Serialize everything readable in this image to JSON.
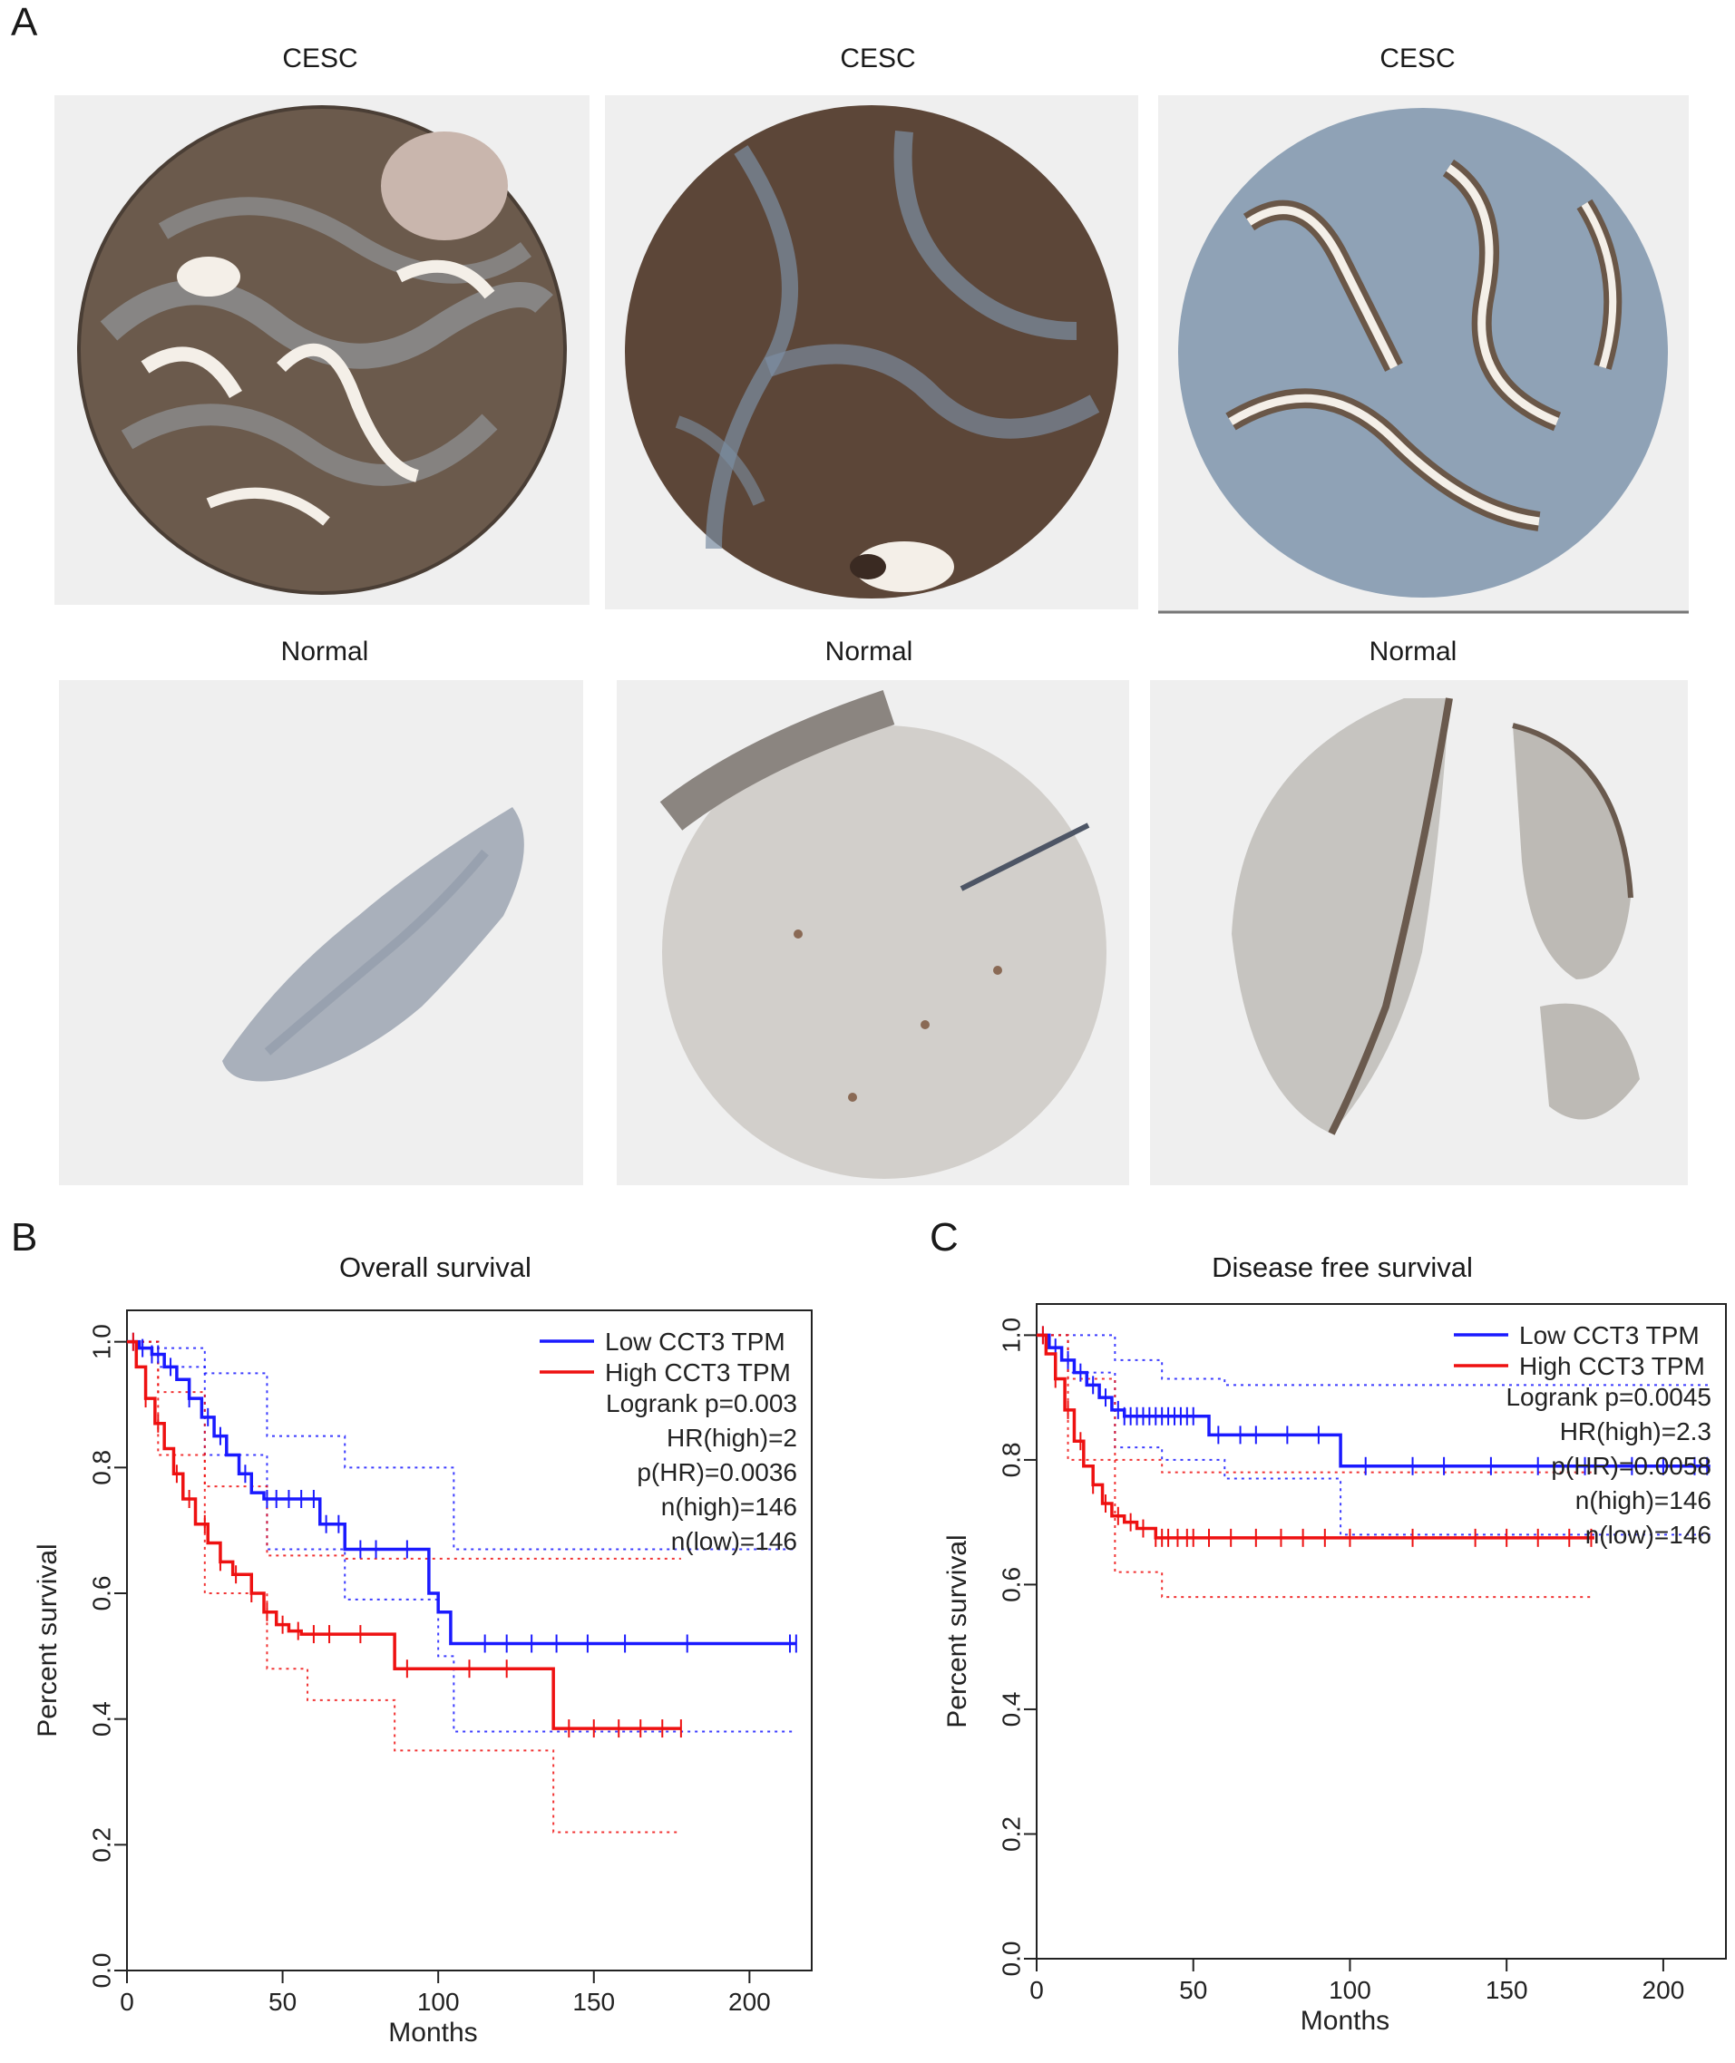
{
  "panels": {
    "a": "A",
    "b": "B",
    "c": "C"
  },
  "tissue": {
    "tumor_label": "CESC",
    "normal_label": "Normal"
  },
  "colors": {
    "low": "#1a1aff",
    "high": "#ee1111",
    "tile_bg": "#efefef",
    "stain_dark": "#5a4a3f",
    "stain_blue": "#8aa0b8",
    "normal_tissue": "#c9c9c6"
  },
  "chart_data": [
    {
      "type": "line",
      "title": "Overall survival",
      "xlabel": "Months",
      "ylabel": "Percent survival",
      "xlim": [
        0,
        220
      ],
      "ylim": [
        0,
        1.05
      ],
      "xticks": [
        0,
        50,
        100,
        150,
        200
      ],
      "yticks": [
        "0.0",
        "0.2",
        "0.4",
        "0.6",
        "0.8",
        "1.0"
      ],
      "legend_placement": "top-right",
      "legend": [
        "Low CCT3 TPM",
        "High CCT3 TPM"
      ],
      "stats": [
        "Logrank p=0.003",
        "HR(high)=2",
        "p(HR)=0.0036",
        "n(high)=146",
        "n(low)=146"
      ],
      "series": [
        {
          "name": "Low CCT3 TPM",
          "color": "#1a1aff",
          "x": [
            0,
            4,
            8,
            12,
            16,
            20,
            24,
            28,
            32,
            36,
            40,
            44,
            55,
            62,
            70,
            85,
            97,
            100,
            104,
            150,
            215
          ],
          "y": [
            1.0,
            0.99,
            0.98,
            0.96,
            0.94,
            0.91,
            0.88,
            0.85,
            0.82,
            0.79,
            0.76,
            0.75,
            0.75,
            0.71,
            0.67,
            0.67,
            0.6,
            0.57,
            0.52,
            0.52,
            0.52
          ],
          "censor_x": [
            2,
            5,
            8,
            10,
            14,
            20,
            26,
            30,
            38,
            45,
            48,
            52,
            56,
            60,
            64,
            68,
            75,
            80,
            90,
            115,
            122,
            130,
            138,
            148,
            160,
            180,
            213,
            215
          ]
        },
        {
          "name": "High CCT3 TPM",
          "color": "#ee1111",
          "x": [
            0,
            3,
            6,
            9,
            12,
            15,
            18,
            22,
            26,
            30,
            34,
            40,
            44,
            48,
            52,
            56,
            70,
            86,
            120,
            137,
            178
          ],
          "y": [
            1.0,
            0.96,
            0.91,
            0.87,
            0.83,
            0.79,
            0.75,
            0.71,
            0.68,
            0.65,
            0.63,
            0.6,
            0.57,
            0.55,
            0.54,
            0.535,
            0.535,
            0.48,
            0.48,
            0.385,
            0.385
          ],
          "censor_x": [
            2,
            6,
            10,
            16,
            20,
            25,
            30,
            35,
            40,
            45,
            50,
            55,
            60,
            65,
            75,
            90,
            110,
            122,
            142,
            150,
            158,
            165,
            172,
            178
          ]
        }
      ],
      "ci": {
        "low_upper": {
          "x": [
            0,
            10,
            25,
            45,
            70,
            105,
            215
          ],
          "y": [
            1.0,
            0.99,
            0.95,
            0.85,
            0.8,
            0.67,
            0.67
          ]
        },
        "low_lower": {
          "x": [
            0,
            10,
            25,
            45,
            70,
            100,
            105,
            215
          ],
          "y": [
            1.0,
            0.96,
            0.82,
            0.67,
            0.59,
            0.5,
            0.38,
            0.38
          ]
        },
        "high_upper": {
          "x": [
            0,
            10,
            25,
            45,
            70,
            100,
            178
          ],
          "y": [
            1.0,
            0.92,
            0.77,
            0.66,
            0.655,
            0.655,
            0.655
          ]
        },
        "high_lower": {
          "x": [
            0,
            10,
            25,
            45,
            58,
            86,
            137,
            178
          ],
          "y": [
            1.0,
            0.82,
            0.6,
            0.48,
            0.43,
            0.35,
            0.22,
            0.22
          ]
        }
      }
    },
    {
      "type": "line",
      "title": "Disease free survival",
      "xlabel": "Months",
      "ylabel": "Percent survival",
      "xlim": [
        0,
        220
      ],
      "ylim": [
        0,
        1.05
      ],
      "xticks": [
        0,
        50,
        100,
        150,
        200
      ],
      "yticks": [
        "0.0",
        "0.2",
        "0.4",
        "0.6",
        "0.8",
        "1.0"
      ],
      "legend_placement": "top-right",
      "legend": [
        "Low CCT3 TPM",
        "High CCT3 TPM"
      ],
      "stats": [
        "Logrank p=0.0045",
        "HR(high)=2.3",
        "p(HR)=0.0058",
        "n(high)=146",
        "n(low)=146"
      ],
      "series": [
        {
          "name": "Low CCT3 TPM",
          "color": "#1a1aff",
          "x": [
            0,
            4,
            8,
            12,
            16,
            20,
            24,
            28,
            55,
            97,
            215
          ],
          "y": [
            1.0,
            0.98,
            0.96,
            0.94,
            0.92,
            0.9,
            0.88,
            0.87,
            0.84,
            0.79,
            0.79
          ],
          "censor_x": [
            2,
            6,
            10,
            14,
            18,
            22,
            26,
            28,
            30,
            32,
            34,
            36,
            38,
            40,
            42,
            44,
            46,
            48,
            50,
            58,
            65,
            70,
            80,
            90,
            105,
            120,
            130,
            145,
            160,
            175,
            190,
            200,
            210,
            214
          ]
        },
        {
          "name": "High CCT3 TPM",
          "color": "#ee1111",
          "x": [
            0,
            3,
            6,
            9,
            12,
            15,
            18,
            21,
            24,
            28,
            32,
            38,
            178
          ],
          "y": [
            1.0,
            0.97,
            0.93,
            0.88,
            0.83,
            0.79,
            0.76,
            0.73,
            0.71,
            0.7,
            0.69,
            0.675,
            0.675
          ],
          "censor_x": [
            2,
            6,
            10,
            14,
            18,
            22,
            26,
            30,
            34,
            38,
            40,
            42,
            45,
            48,
            50,
            55,
            62,
            70,
            78,
            85,
            92,
            100,
            120,
            140,
            150,
            160,
            170,
            177
          ]
        }
      ],
      "ci": {
        "low_upper": {
          "x": [
            0,
            10,
            25,
            40,
            60,
            215
          ],
          "y": [
            1.0,
            1.0,
            0.96,
            0.93,
            0.92,
            0.92
          ]
        },
        "low_lower": {
          "x": [
            0,
            10,
            25,
            40,
            60,
            97,
            215
          ],
          "y": [
            1.0,
            0.94,
            0.82,
            0.8,
            0.77,
            0.68,
            0.68
          ]
        },
        "high_upper": {
          "x": [
            0,
            10,
            25,
            40,
            178
          ],
          "y": [
            1.0,
            0.93,
            0.8,
            0.78,
            0.78
          ]
        },
        "high_lower": {
          "x": [
            0,
            10,
            25,
            40,
            178
          ],
          "y": [
            1.0,
            0.8,
            0.62,
            0.58,
            0.58
          ]
        }
      }
    }
  ]
}
